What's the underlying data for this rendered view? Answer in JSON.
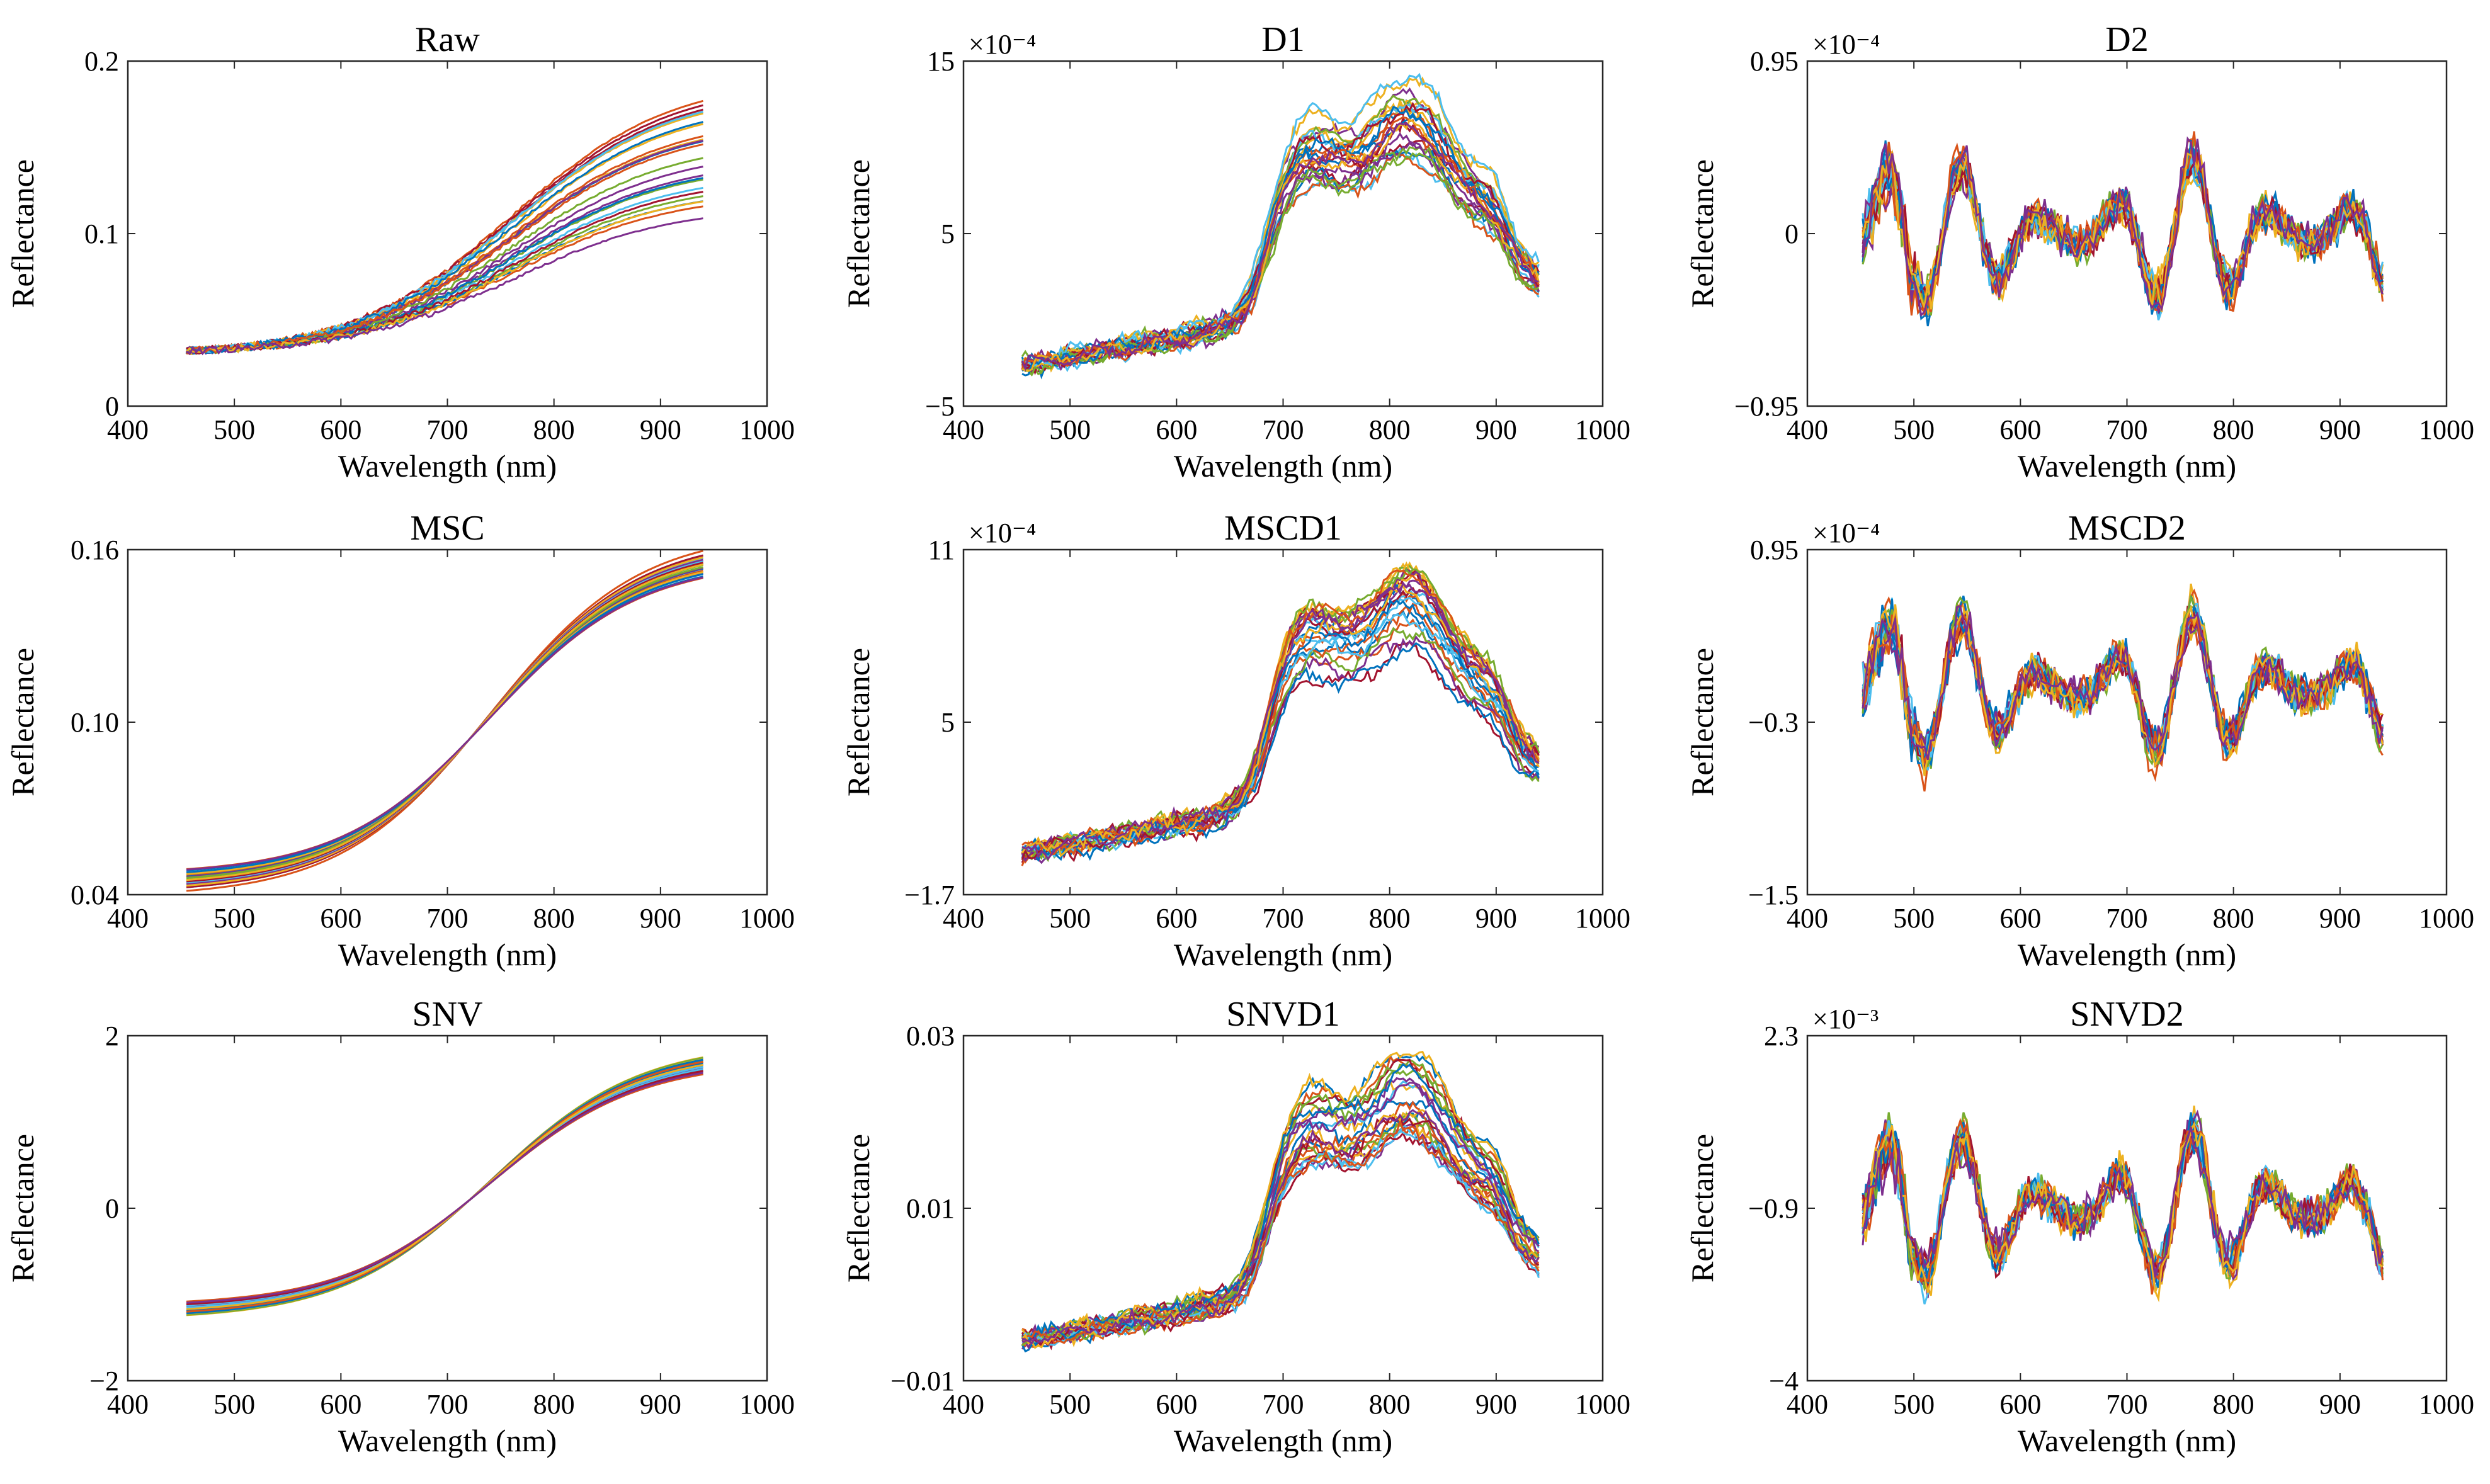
{
  "figure": {
    "x_label": "Wavelength (nm)",
    "y_label": "Reflectance",
    "x_ticks": [
      "400",
      "500",
      "600",
      "700",
      "800",
      "900",
      "1000"
    ],
    "series_colors": [
      "#0072BD",
      "#D95319",
      "#EDB120",
      "#7E2F8E",
      "#77AC30",
      "#4DBEEE",
      "#A2142F"
    ]
  },
  "chart_data": [
    {
      "type": "line",
      "title": "Raw",
      "xlabel": "Wavelength (nm)",
      "ylabel": "Reflectance",
      "xlim": [
        400,
        1000
      ],
      "ylim": [
        0,
        0.2
      ],
      "y_ticks": [
        "0",
        "0.1",
        "0.2"
      ],
      "exponent": "",
      "shape": "raw",
      "x_range": [
        455,
        940
      ],
      "y_start": 0.032,
      "y_end_range": [
        0.107,
        0.178
      ],
      "num_series": 25
    },
    {
      "type": "line",
      "title": "D1",
      "xlabel": "Wavelength (nm)",
      "ylabel": "Reflectance",
      "xlim": [
        400,
        1000
      ],
      "ylim": [
        -5,
        15
      ],
      "y_ticks": [
        "−5",
        "5",
        "15"
      ],
      "exponent": "×10⁻⁴",
      "shape": "d1",
      "x_range": [
        455,
        940
      ],
      "approx_peak": 14.6,
      "num_series": 25
    },
    {
      "type": "line",
      "title": "D2",
      "xlabel": "Wavelength (nm)",
      "ylabel": "Reflectance",
      "xlim": [
        400,
        1000
      ],
      "ylim": [
        -0.95,
        0.95
      ],
      "y_ticks": [
        "−0.95",
        "0",
        "0.95"
      ],
      "exponent": "×10⁻⁴",
      "shape": "d2",
      "x_range": [
        452,
        940
      ],
      "amplitude": 0.45,
      "num_series": 25
    },
    {
      "type": "line",
      "title": "MSC",
      "xlabel": "Wavelength (nm)",
      "ylabel": "Reflectance",
      "xlim": [
        400,
        1000
      ],
      "ylim": [
        0.04,
        0.16
      ],
      "y_ticks": [
        "0.04",
        "0.10",
        "0.16"
      ],
      "exponent": "",
      "shape": "msc",
      "x_range": [
        455,
        940
      ],
      "y_start_range": [
        0.041,
        0.049
      ],
      "y_end_range": [
        0.15,
        0.16
      ],
      "num_series": 25
    },
    {
      "type": "line",
      "title": "MSCD1",
      "xlabel": "Wavelength (nm)",
      "ylabel": "Reflectance",
      "xlim": [
        400,
        1000
      ],
      "ylim": [
        -1.7,
        11
      ],
      "y_ticks": [
        "−1.7",
        "5",
        "11"
      ],
      "exponent": "×10⁻⁴",
      "shape": "d1",
      "x_range": [
        455,
        940
      ],
      "approx_peak": 11,
      "num_series": 25
    },
    {
      "type": "line",
      "title": "MSCD2",
      "xlabel": "Wavelength (nm)",
      "ylabel": "Reflectance",
      "xlim": [
        400,
        1000
      ],
      "ylim": [
        -1.5,
        0.95
      ],
      "y_ticks": [
        "−1.5",
        "−0.3",
        "0.95"
      ],
      "exponent": "×10⁻⁴",
      "shape": "d2",
      "x_range": [
        452,
        940
      ],
      "amplitude": 0.6,
      "num_series": 25
    },
    {
      "type": "line",
      "title": "SNV",
      "xlabel": "Wavelength (nm)",
      "ylabel": "Reflectance",
      "xlim": [
        400,
        1000
      ],
      "ylim": [
        -2,
        2
      ],
      "y_ticks": [
        "−2",
        "0",
        "2"
      ],
      "exponent": "",
      "shape": "snv",
      "x_range": [
        455,
        940
      ],
      "y_start_range": [
        -1.24,
        -1.08
      ],
      "y_end_range": [
        1.55,
        1.75
      ],
      "num_series": 25
    },
    {
      "type": "line",
      "title": "SNVD1",
      "xlabel": "Wavelength (nm)",
      "ylabel": "Reflectance",
      "xlim": [
        400,
        1000
      ],
      "ylim": [
        -0.01,
        0.03
      ],
      "y_ticks": [
        "−0.01",
        "0.01",
        "0.03"
      ],
      "exponent": "",
      "shape": "d1",
      "x_range": [
        455,
        940
      ],
      "approx_peak": 0.029,
      "num_series": 25
    },
    {
      "type": "line",
      "title": "SNVD2",
      "xlabel": "Wavelength (nm)",
      "ylabel": "Reflectance",
      "xlim": [
        400,
        1000
      ],
      "ylim": [
        -4,
        2.3
      ],
      "y_ticks": [
        "−4",
        "−0.9",
        "2.3"
      ],
      "exponent": "×10⁻³",
      "shape": "d2",
      "x_range": [
        452,
        940
      ],
      "amplitude": 1.4,
      "num_series": 25
    }
  ]
}
